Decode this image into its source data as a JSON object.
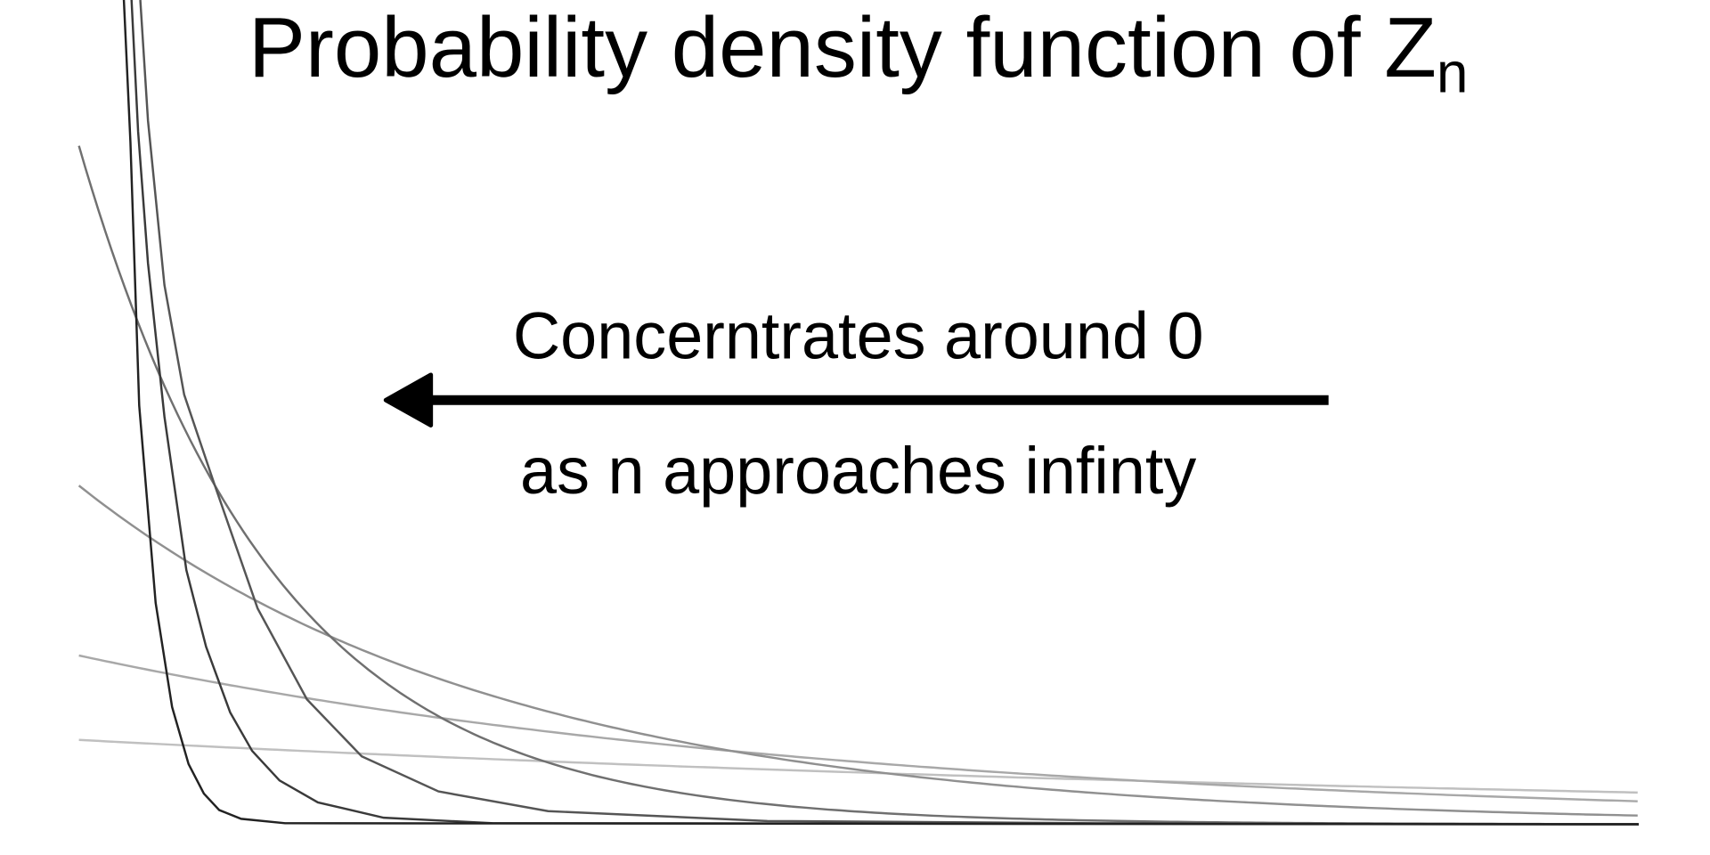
{
  "title": {
    "text": "Probability density function of Z",
    "subscript": "n"
  },
  "annotation": {
    "top": "Concerntrates around 0",
    "bottom": "as n approaches infinty"
  }
}
